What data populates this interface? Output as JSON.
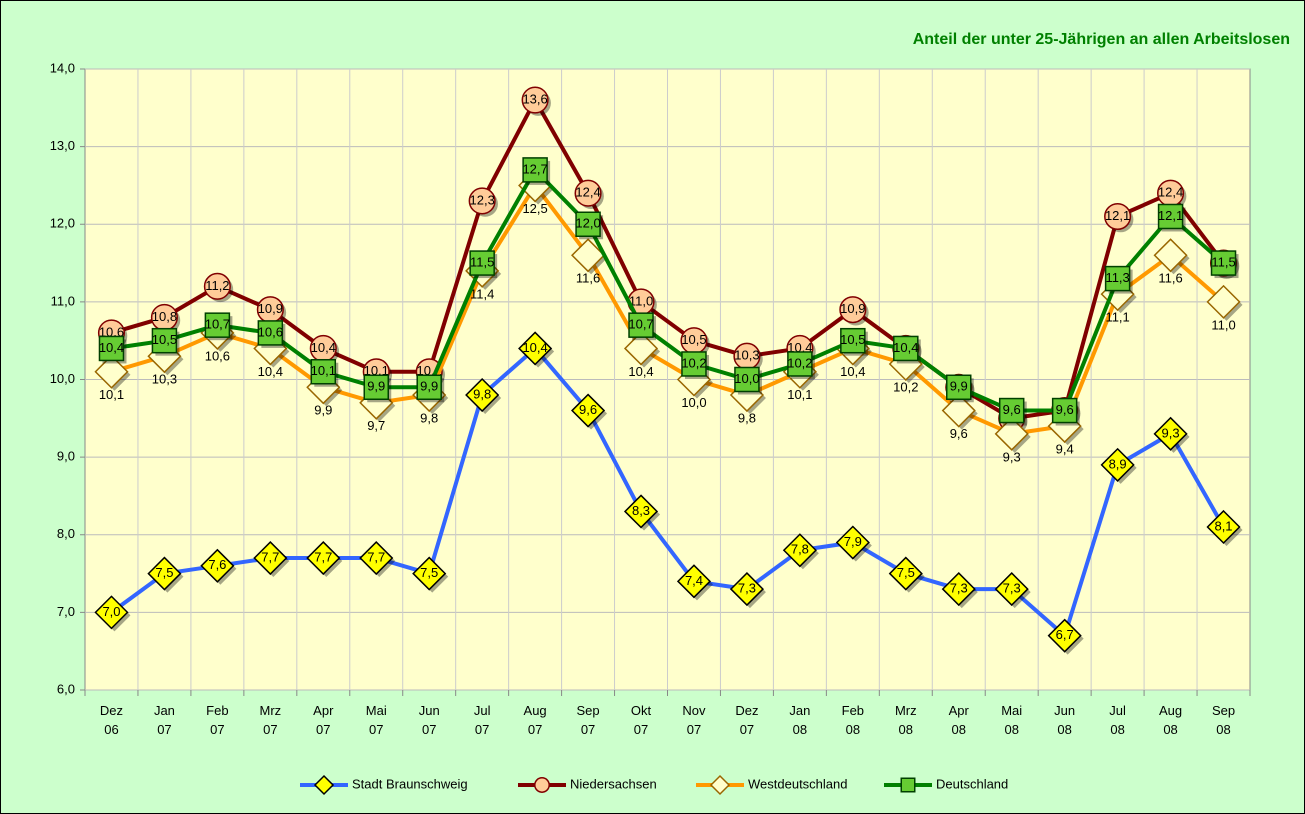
{
  "chart_data": {
    "type": "line",
    "title": "Anteil der unter 25-Jährigen an allen Arbeitslosen",
    "categories": [
      "Dez 06",
      "Jan 07",
      "Feb 07",
      "Mrz 07",
      "Apr 07",
      "Mai 07",
      "Jun 07",
      "Jul 07",
      "Aug 07",
      "Sep 07",
      "Okt 07",
      "Nov 07",
      "Dez 07",
      "Jan 08",
      "Feb 08",
      "Mrz 08",
      "Apr 08",
      "Mai 08",
      "Jun 08",
      "Jul 08",
      "Aug 08",
      "Sep 08"
    ],
    "series": [
      {
        "name": "Stadt Braunschweig",
        "color": "#3366ff",
        "marker": "diamond",
        "marker_color": "#ffff00",
        "values": [
          7.0,
          7.5,
          7.6,
          7.7,
          7.7,
          7.7,
          7.5,
          9.8,
          10.4,
          9.6,
          8.3,
          7.4,
          7.3,
          7.8,
          7.9,
          7.5,
          7.3,
          7.3,
          6.7,
          8.9,
          9.3,
          8.1
        ],
        "value_labels": [
          "7,0",
          "7,5",
          "7,6",
          "7,7",
          "7,7",
          "7,7",
          "7,5",
          "9,8",
          "10,4",
          "9,6",
          "8,3",
          "7,4",
          "7,3",
          "7,8",
          "7,9",
          "7,5",
          "7,3",
          "7,3",
          "6,7",
          "8,9",
          "9,3",
          "8,1"
        ]
      },
      {
        "name": "Niedersachsen",
        "color": "#800000",
        "marker": "circle",
        "marker_color": "#ffcc99",
        "values": [
          10.6,
          10.8,
          11.2,
          10.9,
          10.4,
          10.1,
          10.1,
          12.3,
          13.6,
          12.4,
          11.0,
          10.5,
          10.3,
          10.4,
          10.9,
          10.4,
          9.9,
          9.5,
          9.6,
          12.1,
          12.4,
          11.5
        ],
        "value_labels": [
          "10,6",
          "10,8",
          "11,2",
          "10,9",
          "10,4",
          "10,1",
          "10,1",
          "12,3",
          "13,6",
          "12,4",
          "11,0",
          "10,5",
          "10,3",
          "10,4",
          "10,9",
          "10,4",
          "9,9",
          "9,5",
          "9,6",
          "12,1",
          "12,4",
          "11,5"
        ]
      },
      {
        "name": "Westdeutschland",
        "color": "#ff9900",
        "marker": "diamond",
        "marker_color": "#ffffcc",
        "values": [
          10.1,
          10.3,
          10.6,
          10.4,
          9.9,
          9.7,
          9.8,
          11.4,
          12.5,
          11.6,
          10.4,
          10.0,
          9.8,
          10.1,
          10.4,
          10.2,
          9.6,
          9.3,
          9.4,
          11.1,
          11.6,
          11.0
        ],
        "value_labels": [
          "10,1",
          "10,3",
          "10,6",
          "10,4",
          "9,9",
          "9,7",
          "9,8",
          "11,4",
          "12,5",
          "11,6",
          "10,4",
          "10,0",
          "9,8",
          "10,1",
          "10,4",
          "10,2",
          "9,6",
          "9,3",
          "9,4",
          "11,1",
          "11,6",
          "11,0"
        ]
      },
      {
        "name": "Deutschland",
        "color": "#008000",
        "marker": "square",
        "marker_color": "#66cc33",
        "values": [
          10.4,
          10.5,
          10.7,
          10.6,
          10.1,
          9.9,
          9.9,
          11.5,
          12.7,
          12.0,
          10.7,
          10.2,
          10.0,
          10.2,
          10.5,
          10.4,
          9.9,
          9.6,
          9.6,
          11.3,
          12.1,
          11.5
        ],
        "value_labels": [
          "10,4",
          "10,5",
          "10,7",
          "10,6",
          "10,1",
          "9,9",
          "9,9",
          "11,5",
          "12,7",
          "12,0",
          "10,7",
          "10,2",
          "10,0",
          "10,2",
          "10,5",
          "10,4",
          "9,9",
          "9,6",
          "9,6",
          "11,3",
          "12,1",
          "11,5"
        ]
      }
    ],
    "ylim": [
      6,
      14
    ],
    "yticks": [
      {
        "value": 6,
        "label": "6,0"
      },
      {
        "value": 7,
        "label": "7,0"
      },
      {
        "value": 8,
        "label": "8,0"
      },
      {
        "value": 9,
        "label": "9,0"
      },
      {
        "value": 10,
        "label": "10,0"
      },
      {
        "value": 11,
        "label": "11,0"
      },
      {
        "value": 12,
        "label": "12,0"
      },
      {
        "value": 13,
        "label": "13,0"
      },
      {
        "value": 14,
        "label": "14,0"
      }
    ],
    "grid": true,
    "legend": "bottom"
  }
}
